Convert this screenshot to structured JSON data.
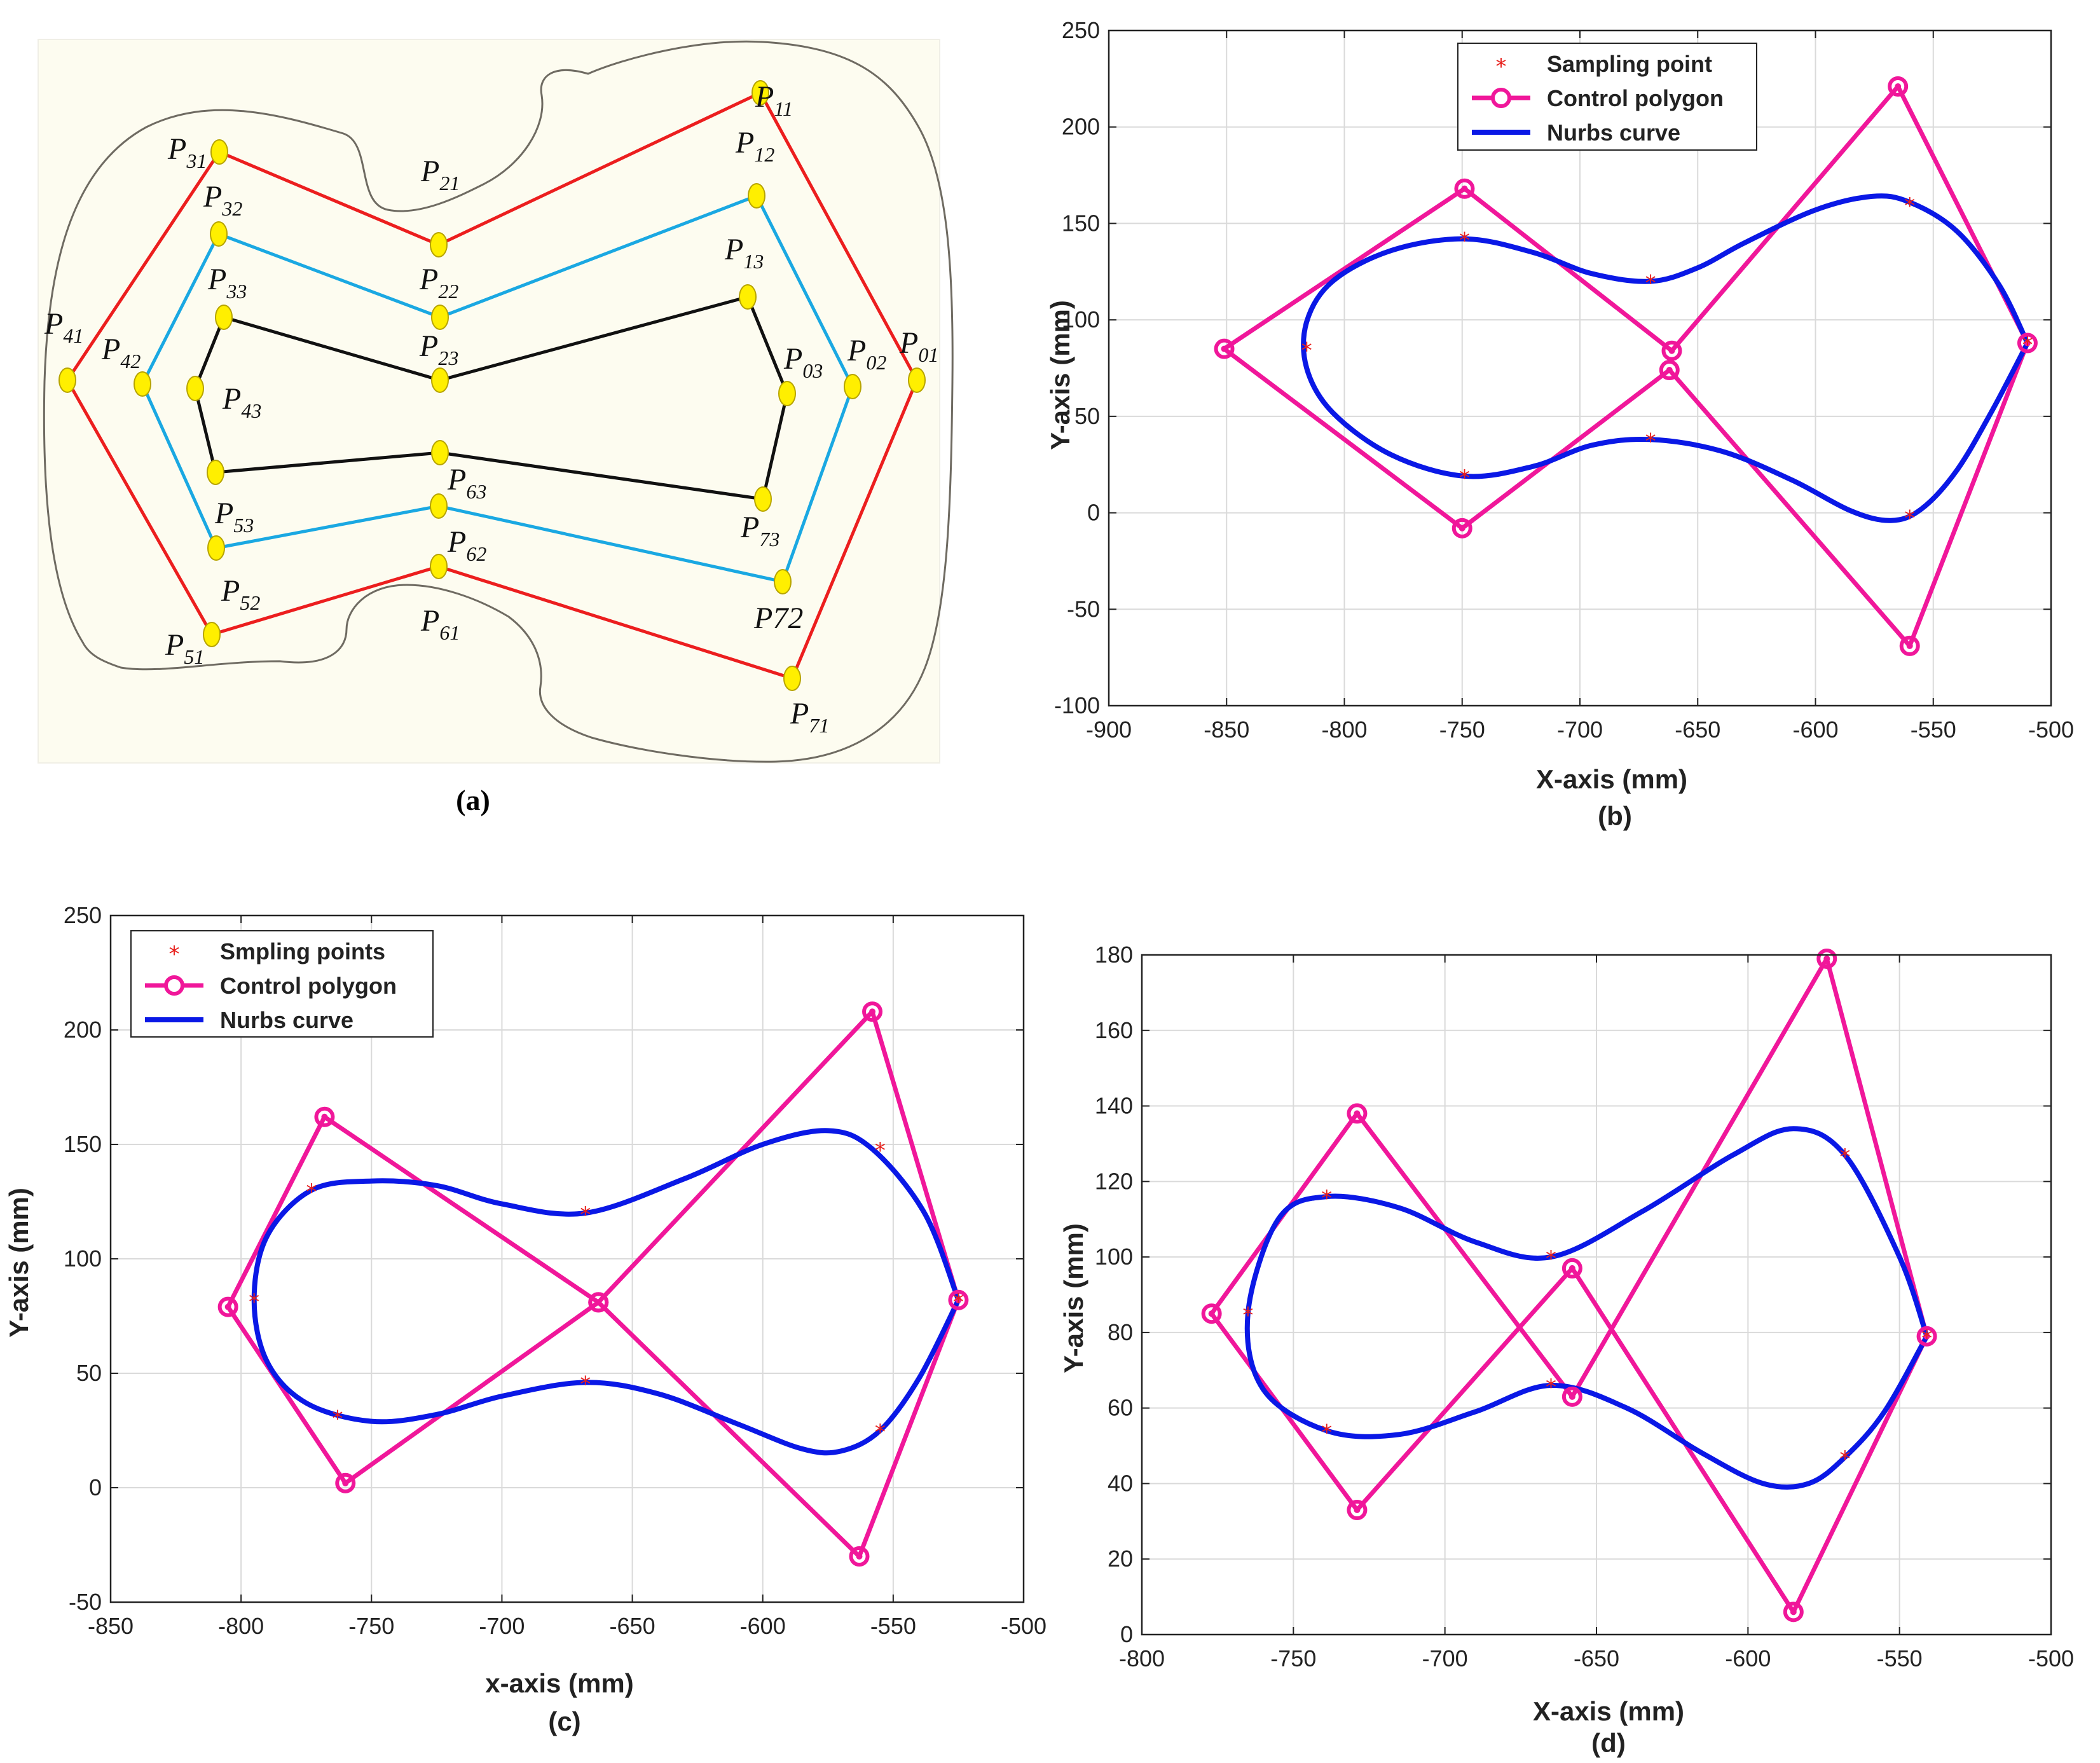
{
  "colors": {
    "sampling": "#e8201c",
    "polygon": "#f0179a",
    "curve": "#0a18e6",
    "grid": "#dadada",
    "panel_bg": "#fdfcf0",
    "outline": "#6f6b62",
    "red_loop": "#ec1e1e",
    "cyan_loop": "#1aa8e2",
    "black_loop": "#111111",
    "node_fill": "#ffef00",
    "node_stroke": "#b7a400"
  },
  "panel_a": {
    "caption": "(a)",
    "points": [
      {
        "id": "P11",
        "base": "P",
        "sub": "11"
      },
      {
        "id": "P01",
        "base": "P",
        "sub": "01"
      },
      {
        "id": "P71",
        "base": "P",
        "sub": "71"
      },
      {
        "id": "P61",
        "base": "P",
        "sub": "61"
      },
      {
        "id": "P51",
        "base": "P",
        "sub": "51"
      },
      {
        "id": "P41",
        "base": "P",
        "sub": "41"
      },
      {
        "id": "P31",
        "base": "P",
        "sub": "31"
      },
      {
        "id": "P21",
        "base": "P",
        "sub": "21"
      },
      {
        "id": "P12",
        "base": "P",
        "sub": "12"
      },
      {
        "id": "P02",
        "base": "P",
        "sub": "02"
      },
      {
        "id": "P72",
        "base": "P72",
        "sub": ""
      },
      {
        "id": "P62",
        "base": "P",
        "sub": "62"
      },
      {
        "id": "P52",
        "base": "P",
        "sub": "52"
      },
      {
        "id": "P42",
        "base": "P",
        "sub": "42"
      },
      {
        "id": "P32",
        "base": "P",
        "sub": "32"
      },
      {
        "id": "P22",
        "base": "P",
        "sub": "22"
      },
      {
        "id": "P13",
        "base": "P",
        "sub": "13"
      },
      {
        "id": "P03",
        "base": "P",
        "sub": "03"
      },
      {
        "id": "P73",
        "base": "P",
        "sub": "73"
      },
      {
        "id": "P63",
        "base": "P",
        "sub": "63"
      },
      {
        "id": "P53",
        "base": "P",
        "sub": "53"
      },
      {
        "id": "P43",
        "base": "P",
        "sub": "43"
      },
      {
        "id": "P33",
        "base": "P",
        "sub": "33"
      },
      {
        "id": "P23",
        "base": "P",
        "sub": "23"
      }
    ]
  },
  "chart_data": [
    {
      "id": "b",
      "type": "line",
      "caption": "(b)",
      "xlabel": "X-axis (mm)",
      "ylabel": "Y-axis (mm)",
      "xlim": [
        -900,
        -500
      ],
      "ylim": [
        -100,
        250
      ],
      "xticks": [
        -900,
        -850,
        -800,
        -750,
        -700,
        -650,
        -600,
        -550,
        -500
      ],
      "yticks": [
        -100,
        -50,
        0,
        50,
        100,
        150,
        200,
        250
      ],
      "grid": true,
      "legend_position": "top-center",
      "legend": [
        "Sampling point",
        "Control polygon",
        "Nurbs curve"
      ],
      "control_polygon": [
        [
          -510,
          88
        ],
        [
          -565,
          221
        ],
        [
          -661,
          84
        ],
        [
          -749,
          168
        ],
        [
          -851,
          85
        ],
        [
          -750,
          -8
        ],
        [
          -662,
          74
        ],
        [
          -560,
          -69
        ],
        [
          -510,
          88
        ]
      ],
      "sampling_points": [
        [
          -510,
          88
        ],
        [
          -560,
          160
        ],
        [
          -670,
          120
        ],
        [
          -749,
          142
        ],
        [
          -816,
          85
        ],
        [
          -749,
          19
        ],
        [
          -670,
          38
        ],
        [
          -560,
          -2
        ]
      ],
      "nurbs_curve": [
        [
          -510,
          88
        ],
        [
          -522,
          118
        ],
        [
          -540,
          146
        ],
        [
          -560,
          161
        ],
        [
          -576,
          164
        ],
        [
          -600,
          157
        ],
        [
          -630,
          140
        ],
        [
          -650,
          127
        ],
        [
          -670,
          120
        ],
        [
          -695,
          124
        ],
        [
          -720,
          135
        ],
        [
          -749,
          142
        ],
        [
          -780,
          136
        ],
        [
          -805,
          120
        ],
        [
          -816,
          99
        ],
        [
          -816,
          75
        ],
        [
          -805,
          52
        ],
        [
          -780,
          30
        ],
        [
          -749,
          19
        ],
        [
          -720,
          24
        ],
        [
          -695,
          35
        ],
        [
          -670,
          38
        ],
        [
          -640,
          32
        ],
        [
          -610,
          17
        ],
        [
          -585,
          1
        ],
        [
          -568,
          -4
        ],
        [
          -555,
          2
        ],
        [
          -540,
          22
        ],
        [
          -525,
          53
        ],
        [
          -510,
          88
        ]
      ]
    },
    {
      "id": "c",
      "type": "line",
      "caption": "(c)",
      "xlabel": "x-axis (mm)",
      "ylabel": "Y-axis (mm)",
      "xlim": [
        -850,
        -500
      ],
      "ylim": [
        -50,
        250
      ],
      "xticks": [
        -850,
        -800,
        -750,
        -700,
        -650,
        -600,
        -550,
        -500
      ],
      "yticks": [
        -50,
        0,
        50,
        100,
        150,
        200,
        250
      ],
      "grid": true,
      "legend_position": "top-left",
      "legend": [
        "Smpling points",
        "Control polygon",
        "Nurbs curve"
      ],
      "control_polygon": [
        [
          -525,
          82
        ],
        [
          -558,
          208
        ],
        [
          -663,
          81
        ],
        [
          -768,
          162
        ],
        [
          -805,
          79
        ],
        [
          -760,
          2
        ],
        [
          -663,
          81
        ],
        [
          -563,
          -30
        ],
        [
          -525,
          82
        ]
      ],
      "sampling_points": [
        [
          -525,
          82
        ],
        [
          -555,
          148
        ],
        [
          -668,
          120
        ],
        [
          -773,
          130
        ],
        [
          -795,
          82
        ],
        [
          -763,
          31
        ],
        [
          -668,
          46
        ],
        [
          -555,
          25
        ]
      ],
      "nurbs_curve": [
        [
          -525,
          82
        ],
        [
          -538,
          120
        ],
        [
          -558,
          148
        ],
        [
          -575,
          156
        ],
        [
          -600,
          150
        ],
        [
          -630,
          135
        ],
        [
          -668,
          120
        ],
        [
          -700,
          124
        ],
        [
          -725,
          132
        ],
        [
          -750,
          134
        ],
        [
          -773,
          130
        ],
        [
          -790,
          110
        ],
        [
          -795,
          82
        ],
        [
          -790,
          55
        ],
        [
          -775,
          37
        ],
        [
          -750,
          29
        ],
        [
          -725,
          32
        ],
        [
          -700,
          40
        ],
        [
          -668,
          46
        ],
        [
          -640,
          41
        ],
        [
          -610,
          28
        ],
        [
          -585,
          17
        ],
        [
          -570,
          16
        ],
        [
          -555,
          25
        ],
        [
          -540,
          48
        ],
        [
          -525,
          82
        ]
      ]
    },
    {
      "id": "d",
      "type": "line",
      "caption": "(d)",
      "xlabel": "X-axis (mm)",
      "ylabel": "Y-axis (mm)",
      "xlim": [
        -800,
        -500
      ],
      "ylim": [
        0,
        180
      ],
      "xticks": [
        -800,
        -750,
        -700,
        -650,
        -600,
        -550,
        -500
      ],
      "yticks": [
        0,
        20,
        40,
        60,
        80,
        100,
        120,
        140,
        160,
        180
      ],
      "grid": true,
      "legend_position": "none",
      "legend": [],
      "control_polygon": [
        [
          -541,
          79
        ],
        [
          -574,
          179
        ],
        [
          -658,
          63
        ],
        [
          -729,
          138
        ],
        [
          -777,
          85
        ],
        [
          -729,
          33
        ],
        [
          -658,
          97
        ],
        [
          -585,
          6
        ],
        [
          -541,
          79
        ]
      ],
      "sampling_points": [
        [
          -541,
          79
        ],
        [
          -568,
          127
        ],
        [
          -665,
          100
        ],
        [
          -739,
          116
        ],
        [
          -765,
          85
        ],
        [
          -739,
          54
        ],
        [
          -665,
          66
        ],
        [
          -568,
          47
        ]
      ],
      "nurbs_curve": [
        [
          -541,
          79
        ],
        [
          -550,
          100
        ],
        [
          -568,
          127
        ],
        [
          -585,
          134
        ],
        [
          -605,
          127
        ],
        [
          -635,
          112
        ],
        [
          -665,
          100
        ],
        [
          -690,
          104
        ],
        [
          -715,
          113
        ],
        [
          -739,
          116
        ],
        [
          -755,
          110
        ],
        [
          -765,
          85
        ],
        [
          -760,
          65
        ],
        [
          -739,
          54
        ],
        [
          -715,
          53
        ],
        [
          -690,
          59
        ],
        [
          -665,
          66
        ],
        [
          -640,
          60
        ],
        [
          -615,
          48
        ],
        [
          -595,
          40
        ],
        [
          -580,
          40
        ],
        [
          -568,
          47
        ],
        [
          -555,
          59
        ],
        [
          -541,
          79
        ]
      ]
    }
  ]
}
